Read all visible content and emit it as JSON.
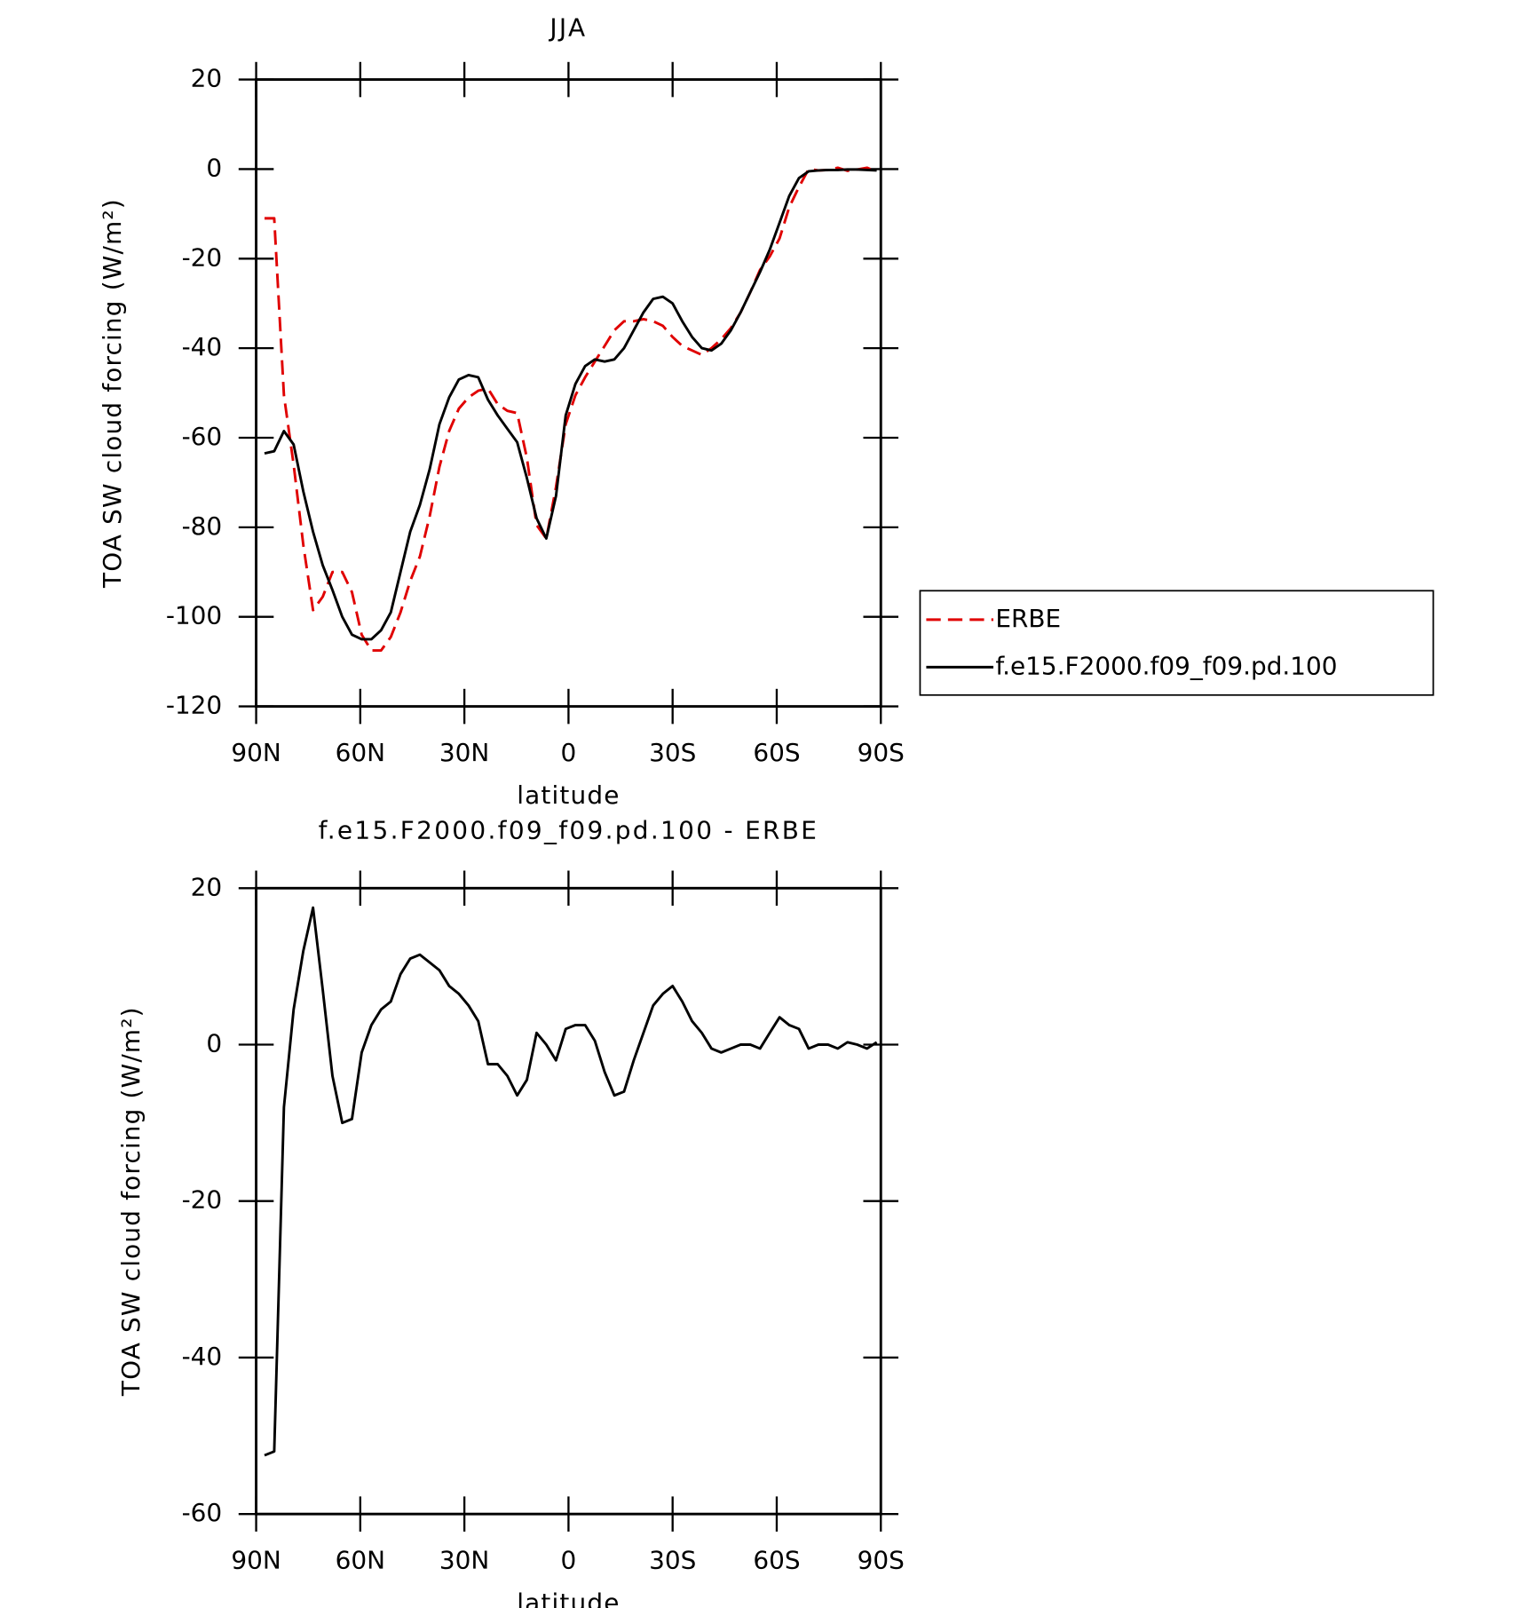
{
  "chart_data": [
    {
      "type": "line",
      "title": "JJA",
      "ylabel": "TOA SW cloud forcing (W/m²)",
      "xlabel": "latitude",
      "x": [
        87.6,
        84.8,
        82.0,
        79.2,
        76.4,
        73.6,
        70.8,
        68.0,
        65.2,
        62.4,
        59.6,
        56.8,
        54.0,
        51.2,
        48.4,
        45.6,
        42.8,
        40.0,
        37.2,
        34.4,
        31.6,
        28.8,
        26.0,
        23.2,
        20.4,
        17.6,
        14.8,
        12.0,
        9.2,
        6.4,
        3.6,
        0.8,
        -2.0,
        -4.8,
        -7.6,
        -10.4,
        -13.2,
        -16.0,
        -18.8,
        -21.6,
        -24.4,
        -27.2,
        -30.0,
        -32.8,
        -35.6,
        -38.4,
        -41.2,
        -44.0,
        -46.8,
        -49.6,
        -52.4,
        -55.2,
        -58.0,
        -60.8,
        -63.6,
        -66.4,
        -69.2,
        -72.0,
        -74.8,
        -77.6,
        -80.4,
        -83.2,
        -86.0,
        -88.8
      ],
      "series": [
        {
          "name": "ERBE",
          "color": "#e00000",
          "dashed": true,
          "values": [
            -11,
            -11,
            -50.5,
            -66,
            -84,
            -98.5,
            -95.5,
            -90,
            -90,
            -94.5,
            -104,
            -107.5,
            -107.5,
            -104.5,
            -99,
            -92,
            -86.5,
            -77.5,
            -66.5,
            -58.5,
            -53.5,
            -51,
            -49.5,
            -49,
            -52.5,
            -54,
            -54.5,
            -64.5,
            -79.5,
            -82.5,
            -71,
            -57,
            -50.5,
            -46.5,
            -43,
            -39.5,
            -36,
            -34,
            -34,
            -33.5,
            -34,
            -35,
            -37.5,
            -39.5,
            -40.5,
            -41.5,
            -40,
            -38,
            -35.5,
            -32,
            -27.5,
            -22.5,
            -19.5,
            -15.5,
            -8.5,
            -4,
            0,
            -0.3,
            -0.2,
            0.3,
            -0.4,
            -0.1,
            0.3,
            -0.6
          ]
        },
        {
          "name": "f.e15.F2000.f09_f09.pd.100",
          "color": "#000000",
          "dashed": false,
          "values": [
            -63.5,
            -63,
            -58.5,
            -61.5,
            -72,
            -81,
            -88.5,
            -94,
            -100,
            -104,
            -105,
            -105,
            -103,
            -99,
            -90,
            -81,
            -75,
            -67,
            -57,
            -51,
            -47,
            -46,
            -46.5,
            -51.5,
            -55,
            -58,
            -61,
            -69,
            -78,
            -82.5,
            -73,
            -55,
            -48,
            -44,
            -42.5,
            -43,
            -42.5,
            -40,
            -36,
            -32,
            -29,
            -28.5,
            -30,
            -34,
            -37.5,
            -40,
            -40.5,
            -39,
            -36,
            -32,
            -27.5,
            -23,
            -18,
            -12,
            -6,
            -2,
            -0.5,
            -0.3,
            -0.2,
            -0.2,
            -0.1,
            -0.1,
            -0.2,
            -0.3
          ]
        }
      ],
      "xlim": [
        90,
        -90
      ],
      "xticks": [
        {
          "value": 90,
          "label": "90N"
        },
        {
          "value": 60,
          "label": "60N"
        },
        {
          "value": 30,
          "label": "30N"
        },
        0,
        {
          "value": -30,
          "label": "30S"
        },
        {
          "value": -60,
          "label": "60S"
        },
        {
          "value": -90,
          "label": "90S"
        }
      ],
      "ylim": [
        -120,
        20
      ],
      "yticks": [
        -120,
        -100,
        -80,
        -60,
        -40,
        -20,
        0,
        20
      ],
      "legend": "outside-right"
    },
    {
      "type": "line",
      "title": "f.e15.F2000.f09_f09.pd.100 - ERBE",
      "ylabel": "TOA SW cloud forcing (W/m²)",
      "xlabel": "latitude",
      "x": [
        87.6,
        84.8,
        82.0,
        79.2,
        76.4,
        73.6,
        70.8,
        68.0,
        65.2,
        62.4,
        59.6,
        56.8,
        54.0,
        51.2,
        48.4,
        45.6,
        42.8,
        40.0,
        37.2,
        34.4,
        31.6,
        28.8,
        26.0,
        23.2,
        20.4,
        17.6,
        14.8,
        12.0,
        9.2,
        6.4,
        3.6,
        0.8,
        -2.0,
        -4.8,
        -7.6,
        -10.4,
        -13.2,
        -16.0,
        -18.8,
        -21.6,
        -24.4,
        -27.2,
        -30.0,
        -32.8,
        -35.6,
        -38.4,
        -41.2,
        -44.0,
        -46.8,
        -49.6,
        -52.4,
        -55.2,
        -58.0,
        -60.8,
        -63.6,
        -66.4,
        -69.2,
        -72.0,
        -74.8,
        -77.6,
        -80.4,
        -83.2,
        -86.0,
        -88.8
      ],
      "values": [
        -52.5,
        -52,
        -8,
        4.5,
        12,
        17.5,
        7,
        -4,
        -10,
        -9.5,
        -1,
        2.5,
        4.5,
        5.5,
        9,
        11,
        11.5,
        10.5,
        9.5,
        7.5,
        6.5,
        5,
        3,
        -2.5,
        -2.5,
        -4,
        -6.5,
        -4.5,
        1.5,
        0,
        -2,
        2,
        2.5,
        2.5,
        0.5,
        -3.5,
        -6.5,
        -6,
        -2,
        1.5,
        5,
        6.5,
        7.5,
        5.5,
        3,
        1.5,
        -0.5,
        -1,
        -0.5,
        0,
        0,
        -0.5,
        1.5,
        3.5,
        2.5,
        2,
        -0.5,
        0,
        0,
        -0.5,
        0.3,
        0,
        -0.5,
        0.3
      ],
      "color": "#000000",
      "xlim": [
        90,
        -90
      ],
      "xticks": [
        {
          "value": 90,
          "label": "90N"
        },
        {
          "value": 60,
          "label": "60N"
        },
        {
          "value": 30,
          "label": "30N"
        },
        0,
        {
          "value": -30,
          "label": "30S"
        },
        {
          "value": -60,
          "label": "60S"
        },
        {
          "value": -90,
          "label": "90S"
        }
      ],
      "ylim": [
        -60,
        20
      ],
      "yticks": [
        -60,
        -40,
        -20,
        0,
        20
      ]
    }
  ]
}
